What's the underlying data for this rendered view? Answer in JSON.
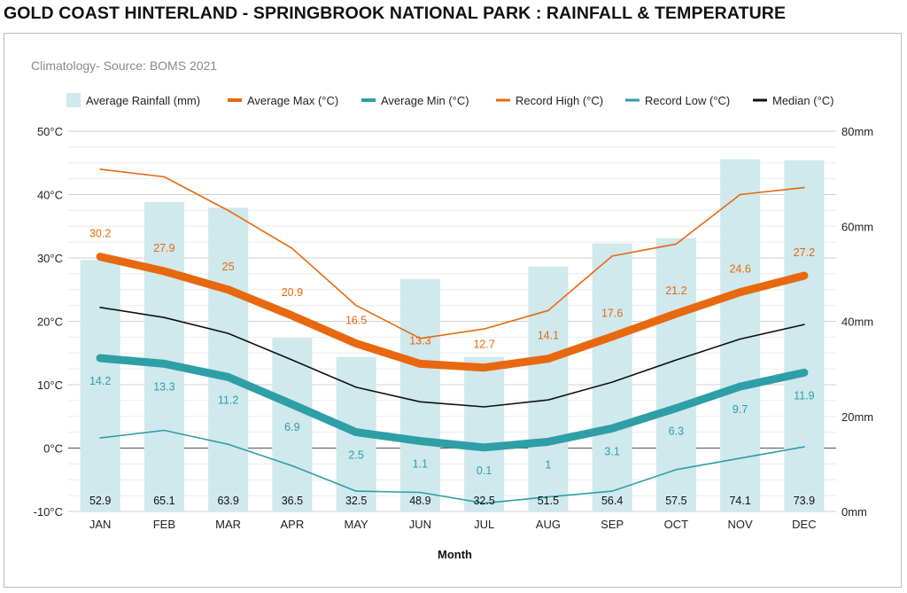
{
  "page": {
    "title": "GOLD COAST HINTERLAND - SPRINGBROOK NATIONAL PARK : RAINFALL & TEMPERATURE"
  },
  "chart_data": {
    "type": "bar",
    "subtitle": "Climatology- Source: BOMS 2021",
    "xlabel": "Month",
    "categories": [
      "JAN",
      "FEB",
      "MAR",
      "APR",
      "MAY",
      "JUN",
      "JUL",
      "AUG",
      "SEP",
      "OCT",
      "NOV",
      "DEC"
    ],
    "y_left": {
      "min": -10,
      "max": 50,
      "step": 10,
      "unit": "°C",
      "ticks": [
        "-10°C",
        "0°C",
        "10°C",
        "20°C",
        "30°C",
        "40°C",
        "50°C"
      ]
    },
    "y_right": {
      "min": 0,
      "max": 80,
      "step": 20,
      "unit": "mm",
      "ticks": [
        "0mm",
        "20mm",
        "40mm",
        "60mm",
        "80mm"
      ]
    },
    "grid": true,
    "legend_position": "top",
    "series": [
      {
        "name": "Average Rainfall (mm)",
        "type": "bar",
        "axis": "right",
        "color": "#cfe9ec",
        "values": [
          52.9,
          65.1,
          63.9,
          36.5,
          32.5,
          48.9,
          32.5,
          51.5,
          56.4,
          57.5,
          74.1,
          73.9
        ],
        "labels": [
          "52.9",
          "65.1",
          "63.9",
          "36.5",
          "32.5",
          "48.9",
          "32.5",
          "51.5",
          "56.4",
          "57.5",
          "74.1",
          "73.9"
        ]
      },
      {
        "name": "Average Max (°C)",
        "type": "line",
        "axis": "left",
        "color": "#e8680f",
        "weight": "thick",
        "values": [
          30.2,
          27.9,
          25,
          20.9,
          16.5,
          13.3,
          12.7,
          14.1,
          17.6,
          21.2,
          24.6,
          27.2
        ],
        "labels": [
          "30.2",
          "27.9",
          "25",
          "20.9",
          "16.5",
          "13.3",
          "12.7",
          "14.1",
          "17.6",
          "21.2",
          "24.6",
          "27.2"
        ]
      },
      {
        "name": "Average Min (°C)",
        "type": "line",
        "axis": "left",
        "color": "#2e9fa6",
        "weight": "thick",
        "values": [
          14.2,
          13.3,
          11.2,
          6.9,
          2.5,
          1.1,
          0.1,
          1,
          3.1,
          6.3,
          9.7,
          11.9
        ],
        "labels": [
          "14.2",
          "13.3",
          "11.2",
          "6.9",
          "2.5",
          "1.1",
          "0.1",
          "1",
          "3.1",
          "6.3",
          "9.7",
          "11.9"
        ]
      },
      {
        "name": "Record High (°C)",
        "type": "line",
        "axis": "left",
        "color": "#e8680f",
        "weight": "thin",
        "values": [
          44,
          42.8,
          37.5,
          31.5,
          22.5,
          17.3,
          18.8,
          21.7,
          30.3,
          32.2,
          40,
          41.1
        ]
      },
      {
        "name": "Record Low (°C)",
        "type": "line",
        "axis": "left",
        "color": "#2e9fa6",
        "weight": "thin",
        "values": [
          1.6,
          2.8,
          0.6,
          -2.8,
          -6.8,
          -7,
          -8.7,
          -7.7,
          -6.8,
          -3.4,
          -1.6,
          0.2
        ]
      },
      {
        "name": "Median  (°C)",
        "type": "line",
        "axis": "left",
        "color": "#111111",
        "weight": "thin",
        "values": [
          22.2,
          20.6,
          18.1,
          13.9,
          9.6,
          7.3,
          6.5,
          7.6,
          10.4,
          13.9,
          17.2,
          19.5
        ]
      }
    ]
  }
}
